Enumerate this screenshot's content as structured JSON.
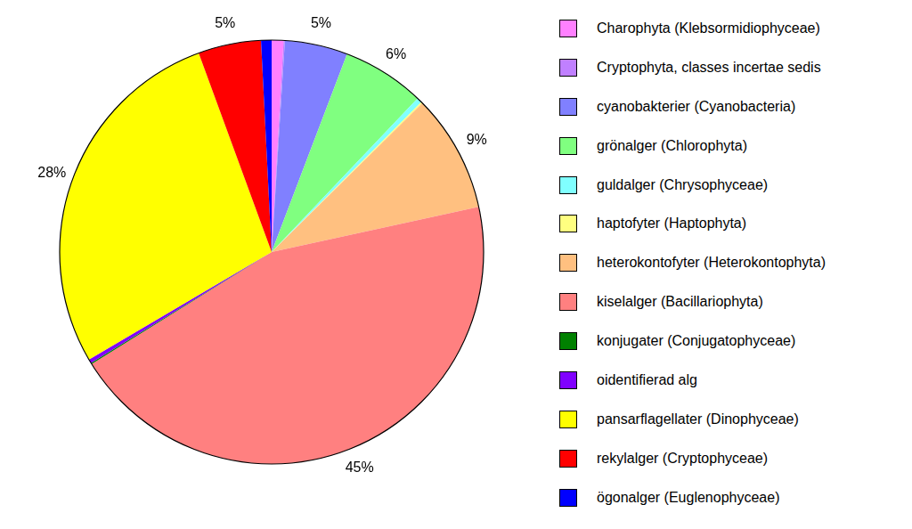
{
  "chart_data": {
    "type": "pie",
    "categories": [
      "Charophyta (Klebsormidiophyceae)",
      "Cryptophyta, classes incertae sedis",
      "cyanobakterier (Cyanobacteria)",
      "grönalger (Chlorophyta)",
      "guldalger (Chrysophyceae)",
      "haptofyter (Haptophyta)",
      "heterokontofyter (Heterokontophyta)",
      "kiselalger (Bacillariophyta)",
      "konjugater (Conjugatophyceae)",
      "oidentifierad alg",
      "pansarflagellater (Dinophyceae)",
      "rekylalger (Cryptophyceae)",
      "ögonalger (Euglenophyceae)"
    ],
    "values": [
      0.9,
      0.1,
      4.8,
      6.3,
      0.4,
      0.1,
      9.0,
      44.6,
      0.1,
      0.3,
      27.9,
      4.8,
      0.8
    ],
    "value_labels": [
      null,
      null,
      "5%",
      "6%",
      null,
      null,
      "9%",
      "45%",
      null,
      null,
      "28%",
      "5%",
      null
    ],
    "colors": [
      "#ff80ff",
      "#c080ff",
      "#8080ff",
      "#80ff80",
      "#80ffff",
      "#ffff80",
      "#ffc080",
      "#ff8080",
      "#008000",
      "#8000ff",
      "#ffff00",
      "#ff0000",
      "#0000ff"
    ],
    "data_labels": true,
    "legend": "right"
  }
}
